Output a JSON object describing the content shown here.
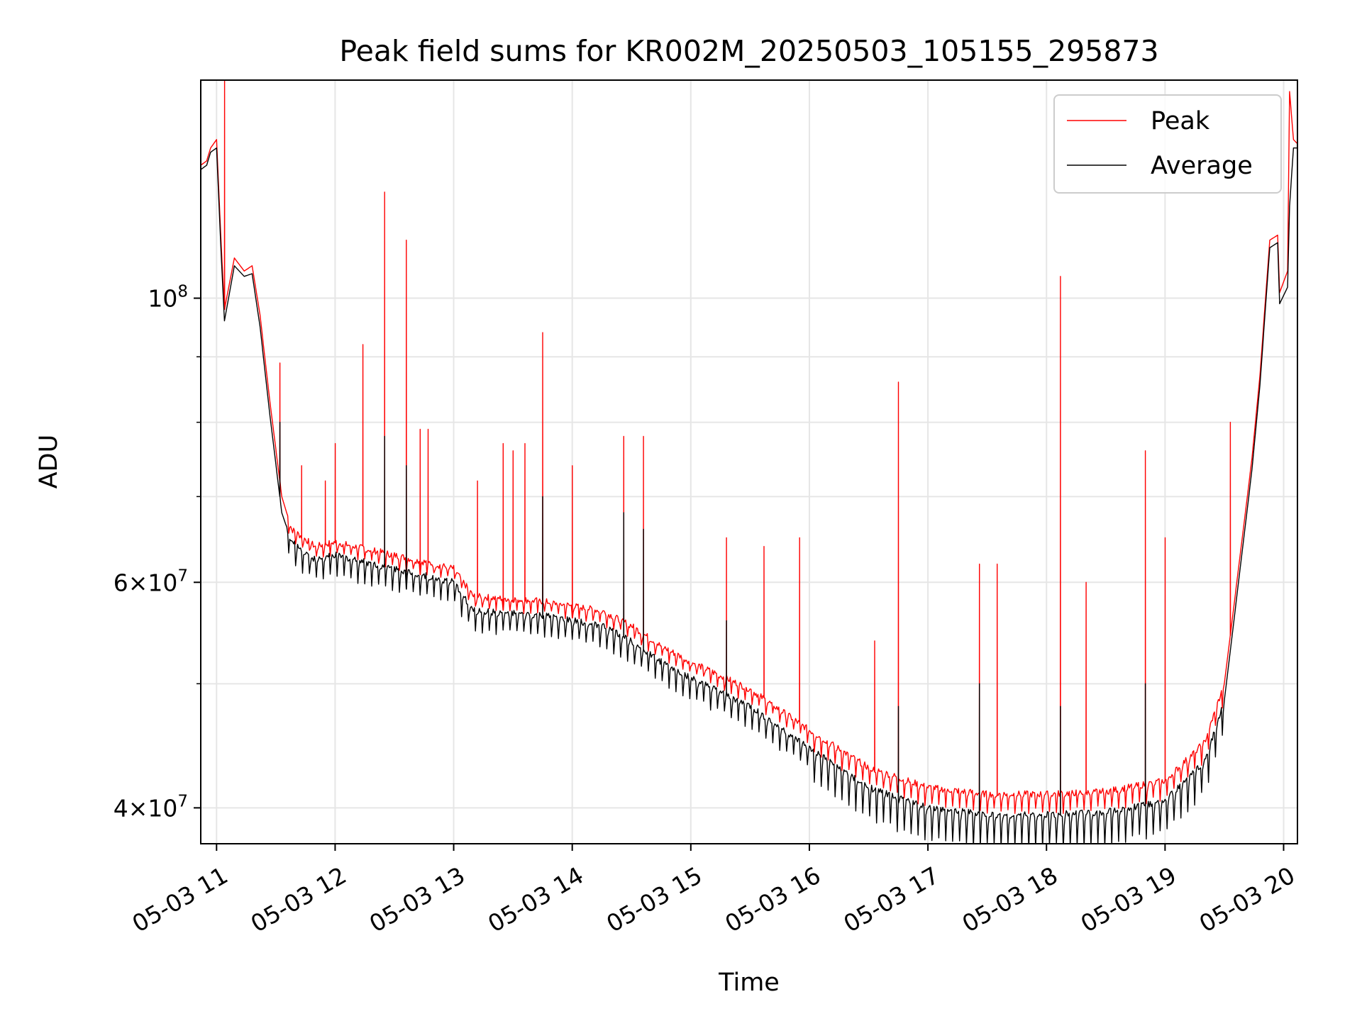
{
  "chart_data": {
    "type": "line",
    "title": "Peak field sums for KR002M_20250503_105155_295873",
    "xlabel": "Time",
    "ylabel": "ADU",
    "yscale": "log",
    "xlim": [
      "05-03 10:52",
      "05-03 20:07"
    ],
    "ylim": [
      37500000,
      148000000
    ],
    "grid": true,
    "legend_position": "top-right",
    "x_ticks": [
      "05-03 11",
      "05-03 12",
      "05-03 13",
      "05-03 14",
      "05-03 15",
      "05-03 16",
      "05-03 17",
      "05-03 18",
      "05-03 19",
      "05-03 20"
    ],
    "y_major_ticks": [
      {
        "value": 100000000,
        "base": "10",
        "exp": "8",
        "mant": ""
      },
      {
        "value": 60000000,
        "base": "10",
        "exp": "7",
        "mant": "6"
      },
      {
        "value": 40000000,
        "base": "10",
        "exp": "7",
        "mant": "4"
      }
    ],
    "y_minor_ticks": [
      90000000,
      80000000,
      70000000,
      50000000
    ],
    "series": [
      {
        "name": "Peak",
        "color": "#ff0000",
        "baseline": [
          [
            "05-03 10:52",
            127000000
          ],
          [
            "05-03 10:55",
            128000000
          ],
          [
            "05-03 10:57",
            131000000
          ],
          [
            "05-03 11:00",
            133000000
          ],
          [
            "05-03 11:02",
            113000000
          ],
          [
            "05-03 11:04",
            98000000
          ],
          [
            "05-03 11:09",
            107500000
          ],
          [
            "05-03 11:14",
            105000000
          ],
          [
            "05-03 11:18",
            106000000
          ],
          [
            "05-03 11:22",
            97000000
          ],
          [
            "05-03 11:27",
            83000000
          ],
          [
            "05-03 11:33",
            70000000
          ],
          [
            "05-03 11:38",
            66000000
          ],
          [
            "05-03 11:50",
            64000000
          ],
          [
            "05-03 12:00",
            64500000
          ],
          [
            "05-03 12:30",
            63000000
          ],
          [
            "05-03 13:00",
            61500000
          ],
          [
            "05-03 13:10",
            58500000
          ],
          [
            "05-03 13:45",
            58000000
          ],
          [
            "05-03 14:15",
            57000000
          ],
          [
            "05-03 14:30",
            55500000
          ],
          [
            "05-03 14:45",
            53500000
          ],
          [
            "05-03 15:00",
            52000000
          ],
          [
            "05-03 15:30",
            49500000
          ],
          [
            "05-03 16:00",
            46000000
          ],
          [
            "05-03 16:30",
            43000000
          ],
          [
            "05-03 17:00",
            41500000
          ],
          [
            "05-03 17:30",
            41000000
          ],
          [
            "05-03 18:00",
            41000000
          ],
          [
            "05-03 18:30",
            41200000
          ],
          [
            "05-03 19:00",
            42000000
          ],
          [
            "05-03 19:20",
            45000000
          ],
          [
            "05-03 19:30",
            50000000
          ],
          [
            "05-03 19:38",
            63000000
          ],
          [
            "05-03 19:44",
            75000000
          ],
          [
            "05-03 19:48",
            87000000
          ],
          [
            "05-03 19:53",
            111000000
          ],
          [
            "05-03 19:57",
            112000000
          ],
          [
            "05-03 19:58",
            101000000
          ],
          [
            "05-03 20:02",
            105000000
          ],
          [
            "05-03 20:03",
            145000000
          ],
          [
            "05-03 20:05",
            133000000
          ],
          [
            "05-03 20:07",
            132000000
          ]
        ],
        "spikes": [
          [
            "05-03 11:04",
            148000000
          ],
          [
            "05-03 11:32",
            89000000
          ],
          [
            "05-03 11:43",
            74000000
          ],
          [
            "05-03 11:55",
            72000000
          ],
          [
            "05-03 12:00",
            77000000
          ],
          [
            "05-03 12:14",
            92000000
          ],
          [
            "05-03 12:25",
            121000000
          ],
          [
            "05-03 12:36",
            111000000
          ],
          [
            "05-03 12:43",
            79000000
          ],
          [
            "05-03 12:47",
            79000000
          ],
          [
            "05-03 13:12",
            72000000
          ],
          [
            "05-03 13:25",
            77000000
          ],
          [
            "05-03 13:30",
            76000000
          ],
          [
            "05-03 13:36",
            77000000
          ],
          [
            "05-03 13:45",
            94000000
          ],
          [
            "05-03 14:00",
            74000000
          ],
          [
            "05-03 14:26",
            78000000
          ],
          [
            "05-03 14:36",
            78000000
          ],
          [
            "05-03 15:18",
            65000000
          ],
          [
            "05-03 15:37",
            64000000
          ],
          [
            "05-03 15:55",
            65000000
          ],
          [
            "05-03 16:33",
            54000000
          ],
          [
            "05-03 16:45",
            86000000
          ],
          [
            "05-03 17:26",
            62000000
          ],
          [
            "05-03 17:35",
            62000000
          ],
          [
            "05-03 18:07",
            104000000
          ],
          [
            "05-03 18:20",
            60000000
          ],
          [
            "05-03 18:50",
            76000000
          ],
          [
            "05-03 19:00",
            65000000
          ],
          [
            "05-03 19:33",
            80000000
          ]
        ]
      },
      {
        "name": "Average",
        "color": "#000000",
        "baseline": [
          [
            "05-03 10:52",
            126000000
          ],
          [
            "05-03 10:55",
            127000000
          ],
          [
            "05-03 10:57",
            130000000
          ],
          [
            "05-03 11:00",
            131000000
          ],
          [
            "05-03 11:02",
            111000000
          ],
          [
            "05-03 11:04",
            96000000
          ],
          [
            "05-03 11:09",
            106000000
          ],
          [
            "05-03 11:14",
            104000000
          ],
          [
            "05-03 11:18",
            104500000
          ],
          [
            "05-03 11:22",
            95000000
          ],
          [
            "05-03 11:27",
            81000000
          ],
          [
            "05-03 11:33",
            68000000
          ],
          [
            "05-03 11:38",
            64500000
          ],
          [
            "05-03 11:50",
            62500000
          ],
          [
            "05-03 12:00",
            63000000
          ],
          [
            "05-03 12:30",
            61500000
          ],
          [
            "05-03 13:00",
            60000000
          ],
          [
            "05-03 13:10",
            57000000
          ],
          [
            "05-03 13:45",
            56500000
          ],
          [
            "05-03 14:15",
            55500000
          ],
          [
            "05-03 14:30",
            54000000
          ],
          [
            "05-03 14:45",
            52000000
          ],
          [
            "05-03 15:00",
            50500000
          ],
          [
            "05-03 15:30",
            48000000
          ],
          [
            "05-03 16:00",
            44500000
          ],
          [
            "05-03 16:30",
            41500000
          ],
          [
            "05-03 17:00",
            40000000
          ],
          [
            "05-03 17:30",
            39500000
          ],
          [
            "05-03 18:00",
            39500000
          ],
          [
            "05-03 18:30",
            39700000
          ],
          [
            "05-03 19:00",
            40500000
          ],
          [
            "05-03 19:20",
            43500000
          ],
          [
            "05-03 19:30",
            48500000
          ],
          [
            "05-03 19:38",
            61500000
          ],
          [
            "05-03 19:44",
            73500000
          ],
          [
            "05-03 19:48",
            85500000
          ],
          [
            "05-03 19:53",
            109500000
          ],
          [
            "05-03 19:57",
            110500000
          ],
          [
            "05-03 19:58",
            99000000
          ],
          [
            "05-03 20:02",
            102000000
          ],
          [
            "05-03 20:03",
            118000000
          ],
          [
            "05-03 20:05",
            131000000
          ],
          [
            "05-03 20:07",
            131000000
          ]
        ],
        "spikes": [
          [
            "05-03 11:32",
            80000000
          ],
          [
            "05-03 12:25",
            78000000
          ],
          [
            "05-03 12:36",
            74000000
          ],
          [
            "05-03 13:45",
            70000000
          ],
          [
            "05-03 14:26",
            68000000
          ],
          [
            "05-03 14:36",
            66000000
          ],
          [
            "05-03 15:18",
            56000000
          ],
          [
            "05-03 16:45",
            48000000
          ],
          [
            "05-03 17:26",
            50000000
          ],
          [
            "05-03 18:07",
            48000000
          ],
          [
            "05-03 18:50",
            50000000
          ]
        ]
      }
    ]
  }
}
